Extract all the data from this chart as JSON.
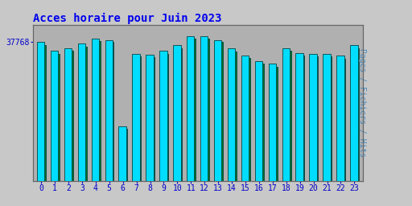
{
  "title": "Acces horaire pour Juin 2023",
  "ylabel_right": "Pages / Fichiers / Hits",
  "hours": [
    0,
    1,
    2,
    3,
    4,
    5,
    6,
    7,
    8,
    9,
    10,
    11,
    12,
    13,
    14,
    15,
    16,
    17,
    18,
    19,
    20,
    21,
    22,
    23
  ],
  "pages": [
    0.96,
    0.9,
    0.92,
    0.95,
    0.985,
    0.975,
    0.38,
    0.88,
    0.875,
    0.9,
    0.94,
    1.0,
    1.0,
    0.975,
    0.915,
    0.87,
    0.83,
    0.81,
    0.92,
    0.885,
    0.88,
    0.88,
    0.865,
    0.94
  ],
  "hits": [
    0.94,
    0.88,
    0.9,
    0.93,
    0.97,
    0.96,
    0.36,
    0.86,
    0.855,
    0.88,
    0.92,
    0.985,
    0.985,
    0.96,
    0.895,
    0.85,
    0.81,
    0.79,
    0.9,
    0.865,
    0.86,
    0.86,
    0.845,
    0.92
  ],
  "ymax": 1.08,
  "ytick_label": "37768",
  "ytick_pos": 0.96,
  "bar_color_cyan": "#00DDFF",
  "bar_color_green": "#007722",
  "bar_edge_color": "#004444",
  "bg_color": "#C8C8C8",
  "plot_bg_color": "#B0B0B0",
  "title_color": "#0000EE",
  "ylabel_color": "#4488BB",
  "tick_label_color": "#0000CC",
  "title_fontsize": 10,
  "tick_fontsize": 7,
  "ylabel_fontsize": 7
}
